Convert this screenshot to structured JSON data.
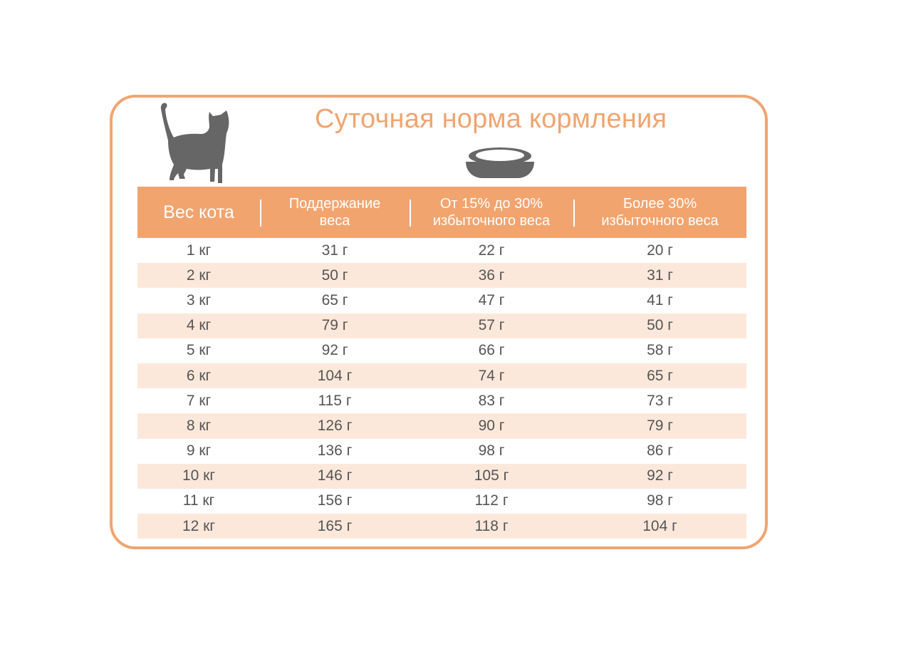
{
  "title": "Суточная норма кормления",
  "colors": {
    "accent": "#f0a571",
    "header_bg": "#f2a46f",
    "stripe": "#fce8da",
    "icon": "#666666"
  },
  "icons": [
    "cat-icon",
    "bowl-icon"
  ],
  "table": {
    "headers": [
      "Вес кота",
      "Поддержание\nвеса",
      "От 15% до 30%\nизбыточного веса",
      "Более 30%\nизбыточного веса"
    ],
    "rows": [
      [
        "1 кг",
        "31 г",
        "22 г",
        "20 г"
      ],
      [
        "2 кг",
        "50 г",
        "36 г",
        "31 г"
      ],
      [
        "3 кг",
        "65 г",
        "47 г",
        "41 г"
      ],
      [
        "4 кг",
        "79 г",
        "57 г",
        "50 г"
      ],
      [
        "5 кг",
        "92 г",
        "66 г",
        "58 г"
      ],
      [
        "6 кг",
        "104 г",
        "74 г",
        "65 г"
      ],
      [
        "7 кг",
        "115 г",
        "83 г",
        "73 г"
      ],
      [
        "8 кг",
        "126 г",
        "90 г",
        "79 г"
      ],
      [
        "9 кг",
        "136 г",
        "98 г",
        "86 г"
      ],
      [
        "10 кг",
        "146 г",
        "105 г",
        "92 г"
      ],
      [
        "11 кг",
        "156 г",
        "112 г",
        "98 г"
      ],
      [
        "12 кг",
        "165 г",
        "118 г",
        "104 г"
      ]
    ]
  }
}
